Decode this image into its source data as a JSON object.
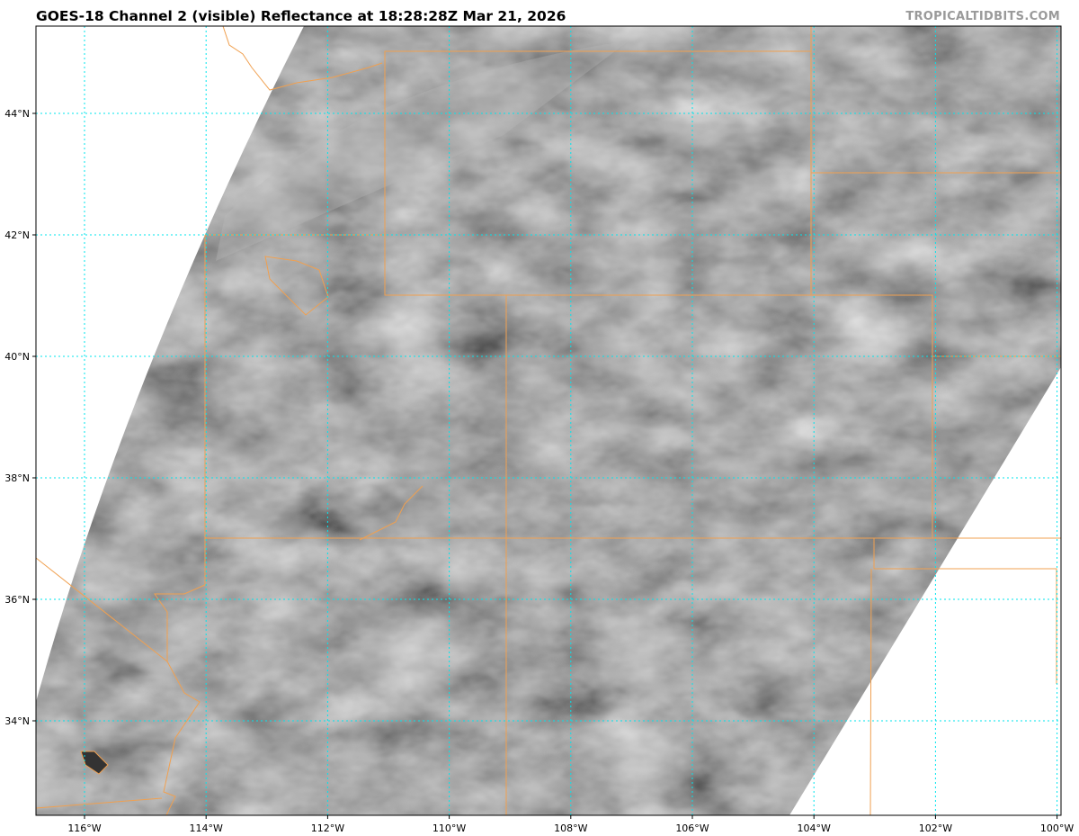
{
  "title": "GOES-18 Channel 2 (visible) Reflectance at 18:28:28Z Mar 21, 2026",
  "watermark": "TROPICALTIDBITS.COM",
  "map": {
    "projection": "lat-lon",
    "lon_range": [
      -116.8,
      -99.9
    ],
    "lat_range": [
      32.5,
      45.4
    ],
    "lat_labels": [
      "44°N",
      "42°N",
      "40°N",
      "38°N",
      "36°N",
      "34°N"
    ],
    "lat_values": [
      44,
      42,
      40,
      38,
      36,
      34
    ],
    "lon_labels": [
      "116°W",
      "114°W",
      "112°W",
      "110°W",
      "108°W",
      "106°W",
      "104°W",
      "102°W",
      "100°W"
    ],
    "lon_values": [
      -116,
      -114,
      -112,
      -110,
      -108,
      -106,
      -104,
      -102,
      -100
    ],
    "colors": {
      "grid": "#00e5ee",
      "borders": "#f0a050",
      "imagery": "#6a6a6a",
      "frame": "#000000"
    }
  }
}
